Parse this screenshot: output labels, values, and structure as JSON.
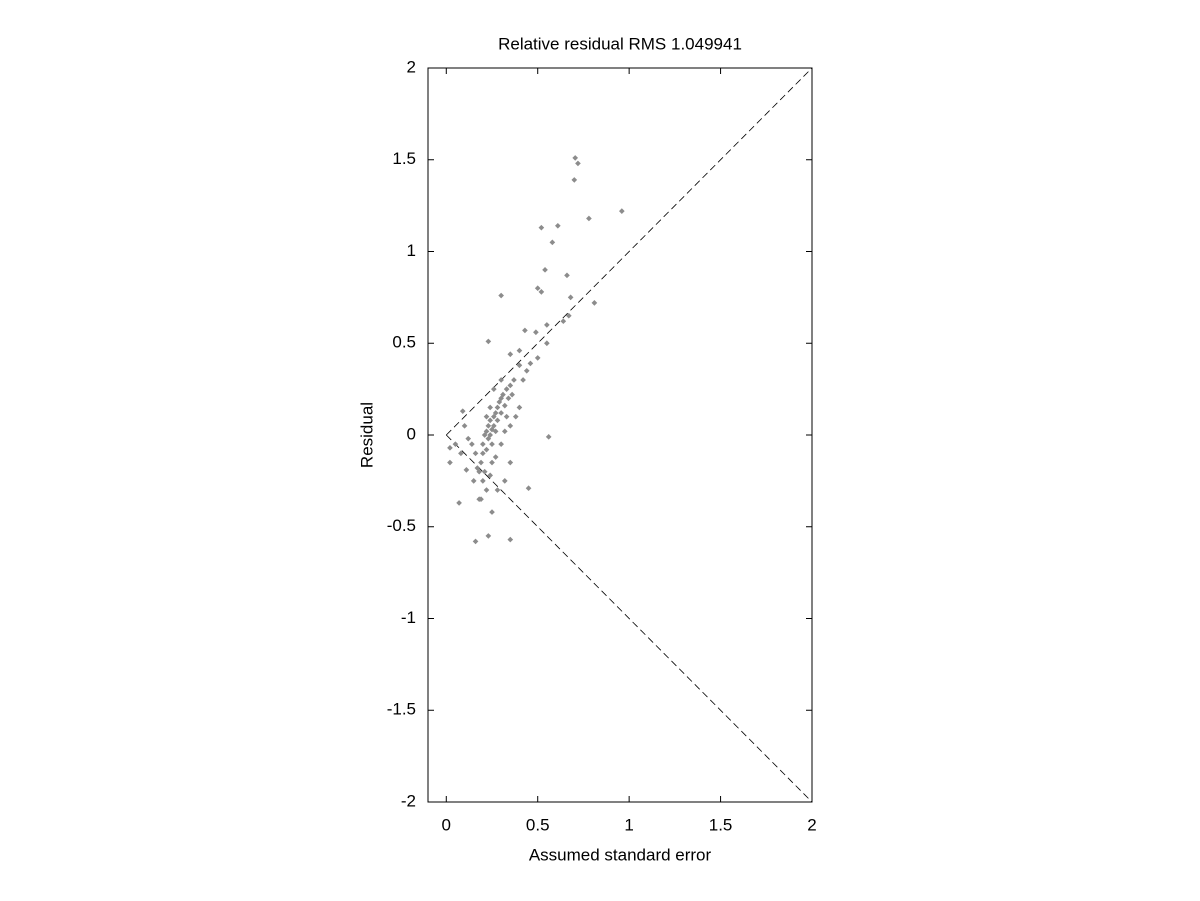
{
  "chart_data": {
    "type": "scatter",
    "title": "Relative residual RMS 1.049941",
    "xlabel": "Assumed standard error",
    "ylabel": "Residual",
    "color": "#8c8c8c",
    "x": [
      0.705,
      0.72,
      0.7,
      0.96,
      0.78,
      0.61,
      0.52,
      0.58,
      0.54,
      0.66,
      0.5,
      0.52,
      0.3,
      0.81,
      0.68,
      0.67,
      0.64,
      0.55,
      0.49,
      0.43,
      0.23,
      0.55,
      0.4,
      0.5,
      0.46,
      0.35,
      0.56,
      0.45,
      0.35,
      0.16,
      0.23,
      0.07,
      0.02,
      0.02,
      0.09,
      0.11,
      0.19,
      0.25,
      0.18,
      0.19,
      0.2,
      0.2,
      0.21,
      0.22,
      0.22,
      0.23,
      0.23,
      0.24,
      0.24,
      0.25,
      0.25,
      0.26,
      0.26,
      0.27,
      0.27,
      0.28,
      0.28,
      0.29,
      0.3,
      0.3,
      0.31,
      0.32,
      0.33,
      0.34,
      0.35,
      0.36,
      0.37,
      0.2,
      0.17,
      0.16,
      0.14,
      0.12,
      0.1,
      0.22,
      0.24,
      0.27,
      0.3,
      0.32,
      0.35,
      0.38,
      0.4,
      0.42,
      0.44,
      0.4,
      0.32,
      0.35,
      0.28,
      0.18,
      0.15,
      0.08,
      0.05,
      0.26,
      0.24,
      0.22,
      0.3,
      0.33,
      0.25,
      0.21
    ],
    "y": [
      1.51,
      1.48,
      1.39,
      1.22,
      1.18,
      1.14,
      1.13,
      1.05,
      0.9,
      0.87,
      0.8,
      0.78,
      0.76,
      0.72,
      0.75,
      0.65,
      0.62,
      0.6,
      0.56,
      0.57,
      0.51,
      0.5,
      0.46,
      0.42,
      0.39,
      0.44,
      -0.01,
      -0.29,
      -0.57,
      -0.58,
      -0.55,
      -0.37,
      -0.15,
      -0.07,
      0.13,
      -0.19,
      -0.35,
      -0.42,
      -0.2,
      -0.15,
      -0.1,
      -0.05,
      0,
      -0.08,
      0.02,
      -0.02,
      0.05,
      0,
      0.08,
      0.03,
      -0.05,
      0.1,
      0.05,
      0.12,
      0.02,
      0.15,
      0.08,
      0.18,
      0.12,
      0.2,
      0.22,
      0.16,
      0.25,
      0.2,
      0.27,
      0.22,
      0.3,
      -0.25,
      -0.18,
      -0.1,
      -0.05,
      -0.02,
      0.05,
      -0.3,
      -0.22,
      -0.12,
      -0.05,
      0.02,
      0.05,
      0.1,
      0.15,
      0.3,
      0.35,
      0.38,
      -0.25,
      -0.15,
      -0.3,
      -0.35,
      -0.25,
      -0.1,
      -0.05,
      0.25,
      0.15,
      0.1,
      0.3,
      0.1,
      -0.15,
      -0.2
    ],
    "xlim": [
      -0.1,
      2
    ],
    "ylim": [
      -2,
      2
    ],
    "xticks": [
      0,
      0.5,
      1,
      1.5,
      2
    ],
    "yticks": [
      -2,
      -1.5,
      -1,
      -0.5,
      0,
      0.5,
      1,
      1.5,
      2
    ]
  }
}
